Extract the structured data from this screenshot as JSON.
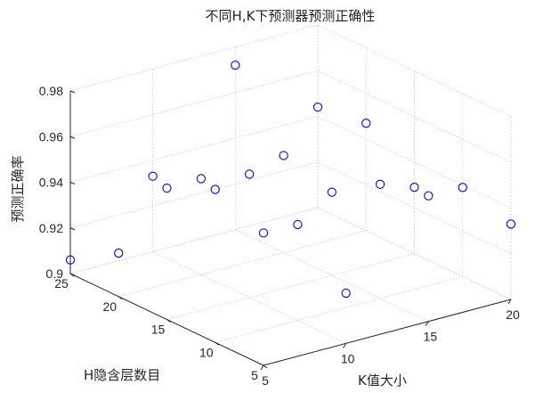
{
  "chart_data": {
    "type": "scatter3d",
    "title": "不同H,K下预测器预测正确性",
    "xlabel": "K值大小",
    "ylabel": "H隐含层数目",
    "zlabel": "预测正确率",
    "xlim": [
      5,
      20
    ],
    "ylim": [
      5,
      25
    ],
    "zlim": [
      0.9,
      0.98
    ],
    "xticks": [
      "5",
      "10",
      "15",
      "20"
    ],
    "yticks": [
      "5",
      "10",
      "15",
      "20",
      "25"
    ],
    "zticks": [
      "0.9",
      "0.92",
      "0.94",
      "0.96",
      "0.98"
    ],
    "grid": true,
    "marker": "o",
    "marker_color": "#0000ff",
    "points": [
      {
        "x": 5,
        "y": 25,
        "z": 0.906
      },
      {
        "x": 5,
        "y": 20,
        "z": 0.919
      },
      {
        "x": 5,
        "y": 15,
        "z": 0.9575
      },
      {
        "x": 5,
        "y": 10,
        "z": 0.967
      },
      {
        "x": 5,
        "y": 5,
        "z": 0.958
      },
      {
        "x": 10,
        "y": 25,
        "z": 0.933
      },
      {
        "x": 10,
        "y": 20,
        "z": 0.942
      },
      {
        "x": 10,
        "y": 15,
        "z": 0.954
      },
      {
        "x": 10,
        "y": 10,
        "z": 0.942
      },
      {
        "x": 10,
        "y": 5,
        "z": 0.922
      },
      {
        "x": 15,
        "y": 25,
        "z": 0.972
      },
      {
        "x": 15,
        "y": 20,
        "z": 0.9425
      },
      {
        "x": 15,
        "y": 15,
        "z": 0.9365
      },
      {
        "x": 15,
        "y": 10,
        "z": 0.95
      },
      {
        "x": 15,
        "y": 5,
        "z": 0.955
      },
      {
        "x": 20,
        "y": 25,
        "z": 0.944
      },
      {
        "x": 20,
        "y": 20,
        "z": 0.947
      },
      {
        "x": 20,
        "y": 15,
        "z": 0.929
      },
      {
        "x": 20,
        "y": 10,
        "z": 0.939
      },
      {
        "x": 20,
        "y": 5,
        "z": 0.933
      }
    ]
  }
}
